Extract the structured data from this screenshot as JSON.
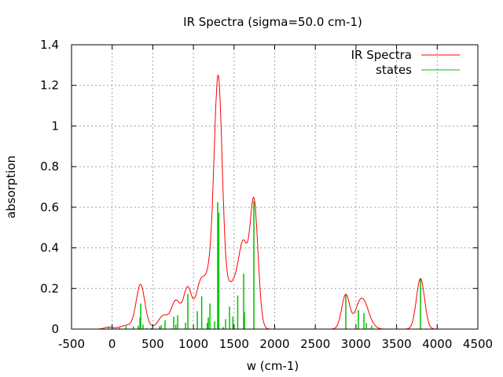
{
  "chart_data": {
    "type": "line",
    "title": "IR Spectra (sigma=50.0 cm-1)",
    "xlabel": "w (cm-1)",
    "ylabel": "absorption",
    "xlim": [
      -500,
      4500
    ],
    "ylim": [
      0,
      1.4
    ],
    "xticks": [
      "-500",
      "0",
      "500",
      "1000",
      "1500",
      "2000",
      "2500",
      "3000",
      "3500",
      "4000",
      "4500"
    ],
    "xtick_values": [
      -500,
      0,
      500,
      1000,
      1500,
      2000,
      2500,
      3000,
      3500,
      4000,
      4500
    ],
    "yticks": [
      "0",
      "0.2",
      "0.4",
      "0.6",
      "0.8",
      "1",
      "1.2",
      "1.4"
    ],
    "ytick_values": [
      0,
      0.2,
      0.4,
      0.6,
      0.8,
      1,
      1.2,
      1.4
    ],
    "grid": true,
    "legend_position": "top-right",
    "sigma": 50.0,
    "series": [
      {
        "name": "IR Spectra",
        "kind": "gaussian-broadened sum of states",
        "color": "#ff0000"
      },
      {
        "name": "states",
        "kind": "impulses",
        "color": "#00c000",
        "x": [
          -42,
          90,
          171,
          261,
          319,
          342,
          351,
          380,
          422,
          481,
          583,
          603,
          651,
          728,
          757,
          783,
          806,
          903,
          932,
          1048,
          1102,
          1170,
          1183,
          1203,
          1261,
          1299,
          1312,
          1367,
          1396,
          1444,
          1486,
          1545,
          1618,
          1628,
          1744,
          2875,
          3030,
          3098,
          3128,
          3166,
          3195,
          3794
        ],
        "y": [
          0.01,
          0.006,
          0.014,
          0.014,
          0.017,
          0.057,
          0.126,
          0.022,
          0.006,
          0.006,
          0.014,
          0.019,
          0.044,
          0.003,
          0.061,
          0.022,
          0.068,
          0.032,
          0.173,
          0.088,
          0.161,
          0.03,
          0.057,
          0.126,
          0.037,
          0.625,
          0.574,
          0.01,
          0.049,
          0.111,
          0.061,
          0.165,
          0.273,
          0.083,
          0.63,
          0.171,
          0.094,
          0.079,
          0.03,
          0.004,
          0.017,
          0.249
        ]
      }
    ]
  }
}
